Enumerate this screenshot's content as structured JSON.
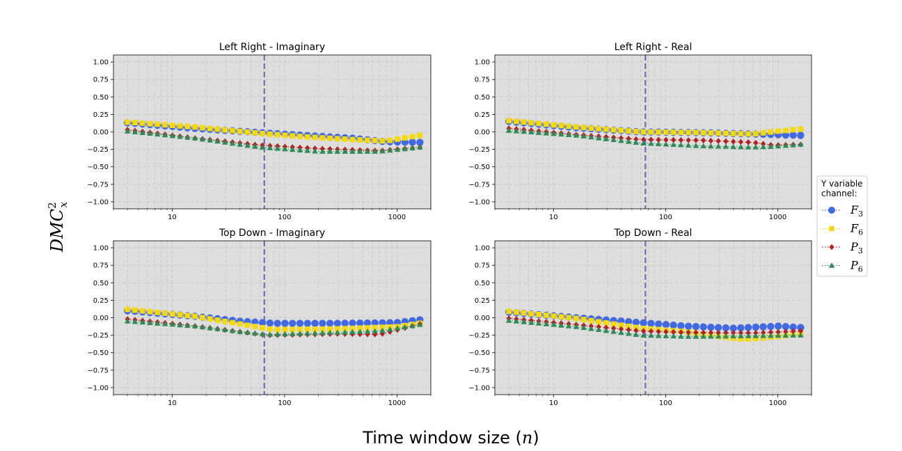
{
  "figure": {
    "xlabel": "Time window size (n)",
    "ylabel": "DMC²ₓ"
  },
  "legend": {
    "title_lines": [
      "Y variable",
      "channel:"
    ],
    "entries": [
      {
        "label": "F3",
        "base": "F",
        "sub": "3",
        "color": "#4169E1",
        "marker": "circle"
      },
      {
        "label": "F6",
        "base": "F",
        "sub": "6",
        "color": "#F5D90A",
        "marker": "square"
      },
      {
        "label": "P3",
        "base": "P",
        "sub": "3",
        "color": "#B22222",
        "marker": "diamond"
      },
      {
        "label": "P6",
        "base": "P",
        "sub": "6",
        "color": "#2E8B57",
        "marker": "triangle"
      }
    ]
  },
  "chart_data": [
    {
      "type": "scatter",
      "title": "Left Right - Imaginary",
      "xscale": "log",
      "xlim": [
        3,
        2000
      ],
      "ylim": [
        -1.1,
        1.1
      ],
      "xticks": [
        "10",
        "100",
        "1000"
      ],
      "yticks": [
        "1.00",
        "0.75",
        "0.50",
        "0.25",
        "0.00",
        "−0.25",
        "−0.50",
        "−0.75",
        "−1.00"
      ],
      "vline_x": 66,
      "grid": true,
      "series": [
        {
          "name": "F3",
          "keys": [
            [
              4,
              0.13
            ],
            [
              16,
              0.05
            ],
            [
              60,
              -0.01
            ],
            [
              150,
              -0.05
            ],
            [
              400,
              -0.09
            ],
            [
              800,
              -0.14
            ],
            [
              1600,
              -0.15
            ]
          ]
        },
        {
          "name": "F6",
          "keys": [
            [
              4,
              0.14
            ],
            [
              16,
              0.07
            ],
            [
              60,
              -0.02
            ],
            [
              150,
              -0.07
            ],
            [
              400,
              -0.11
            ],
            [
              800,
              -0.13
            ],
            [
              1600,
              -0.05
            ]
          ]
        },
        {
          "name": "P3",
          "keys": [
            [
              4,
              0.03
            ],
            [
              16,
              -0.09
            ],
            [
              60,
              -0.19
            ],
            [
              200,
              -0.24
            ],
            [
              700,
              -0.27
            ],
            [
              1600,
              -0.22
            ]
          ]
        },
        {
          "name": "P6",
          "keys": [
            [
              4,
              0.01
            ],
            [
              16,
              -0.09
            ],
            [
              60,
              -0.22
            ],
            [
              200,
              -0.28
            ],
            [
              700,
              -0.28
            ],
            [
              1600,
              -0.22
            ]
          ]
        }
      ]
    },
    {
      "type": "scatter",
      "title": "Left Right - Real",
      "xscale": "log",
      "xlim": [
        3,
        2000
      ],
      "ylim": [
        -1.1,
        1.1
      ],
      "xticks": [
        "10",
        "100",
        "1000"
      ],
      "yticks": [
        "1.00",
        "0.75",
        "0.50",
        "0.25",
        "0.00",
        "−0.25",
        "−0.50",
        "−0.75",
        "−1.00"
      ],
      "vline_x": 66,
      "grid": true,
      "series": [
        {
          "name": "F3",
          "keys": [
            [
              4,
              0.15
            ],
            [
              16,
              0.06
            ],
            [
              60,
              0.0
            ],
            [
              200,
              -0.01
            ],
            [
              600,
              -0.03
            ],
            [
              1600,
              -0.05
            ]
          ]
        },
        {
          "name": "F6",
          "keys": [
            [
              4,
              0.16
            ],
            [
              16,
              0.07
            ],
            [
              60,
              0.0
            ],
            [
              200,
              -0.01
            ],
            [
              600,
              -0.03
            ],
            [
              1000,
              0.01
            ],
            [
              1600,
              0.04
            ]
          ]
        },
        {
          "name": "P3",
          "keys": [
            [
              4,
              0.05
            ],
            [
              16,
              -0.04
            ],
            [
              60,
              -0.11
            ],
            [
              200,
              -0.12
            ],
            [
              600,
              -0.15
            ],
            [
              900,
              -0.19
            ],
            [
              1600,
              -0.18
            ]
          ]
        },
        {
          "name": "P6",
          "keys": [
            [
              4,
              0.02
            ],
            [
              16,
              -0.05
            ],
            [
              60,
              -0.16
            ],
            [
              200,
              -0.2
            ],
            [
              600,
              -0.22
            ],
            [
              900,
              -0.21
            ],
            [
              1600,
              -0.18
            ]
          ]
        }
      ]
    },
    {
      "type": "scatter",
      "title": "Top Down - Imaginary",
      "xscale": "log",
      "xlim": [
        3,
        2000
      ],
      "ylim": [
        -1.1,
        1.1
      ],
      "xticks": [
        "10",
        "100",
        "1000"
      ],
      "yticks": [
        "1.00",
        "0.75",
        "0.50",
        "0.25",
        "0.00",
        "−0.25",
        "−0.50",
        "−0.75",
        "−1.00"
      ],
      "vline_x": 66,
      "grid": true,
      "series": [
        {
          "name": "F3",
          "keys": [
            [
              4,
              0.1
            ],
            [
              16,
              0.02
            ],
            [
              40,
              -0.05
            ],
            [
              80,
              -0.08
            ],
            [
              300,
              -0.08
            ],
            [
              1000,
              -0.07
            ],
            [
              1600,
              -0.03
            ]
          ]
        },
        {
          "name": "F6",
          "keys": [
            [
              4,
              0.12
            ],
            [
              16,
              0.02
            ],
            [
              40,
              -0.09
            ],
            [
              80,
              -0.17
            ],
            [
              300,
              -0.16
            ],
            [
              1000,
              -0.13
            ],
            [
              1600,
              -0.08
            ]
          ]
        },
        {
          "name": "P3",
          "keys": [
            [
              4,
              -0.02
            ],
            [
              16,
              -0.12
            ],
            [
              40,
              -0.2
            ],
            [
              70,
              -0.25
            ],
            [
              300,
              -0.23
            ],
            [
              700,
              -0.24
            ],
            [
              1600,
              -0.09
            ]
          ]
        },
        {
          "name": "P6",
          "keys": [
            [
              4,
              -0.05
            ],
            [
              16,
              -0.12
            ],
            [
              40,
              -0.2
            ],
            [
              70,
              -0.24
            ],
            [
              300,
              -0.21
            ],
            [
              700,
              -0.19
            ],
            [
              1600,
              -0.1
            ]
          ]
        }
      ]
    },
    {
      "type": "scatter",
      "title": "Top Down - Real",
      "xscale": "log",
      "xlim": [
        3,
        2000
      ],
      "ylim": [
        -1.1,
        1.1
      ],
      "xticks": [
        "10",
        "100",
        "1000"
      ],
      "yticks": [
        "1.00",
        "0.75",
        "0.50",
        "0.25",
        "0.00",
        "−0.25",
        "−0.50",
        "−0.75",
        "−1.00"
      ],
      "vline_x": 66,
      "grid": true,
      "series": [
        {
          "name": "F3",
          "keys": [
            [
              4,
              0.08
            ],
            [
              16,
              0.0
            ],
            [
              60,
              -0.07
            ],
            [
              150,
              -0.12
            ],
            [
              400,
              -0.15
            ],
            [
              1000,
              -0.12
            ],
            [
              1600,
              -0.14
            ]
          ]
        },
        {
          "name": "F6",
          "keys": [
            [
              4,
              0.09
            ],
            [
              16,
              -0.01
            ],
            [
              60,
              -0.15
            ],
            [
              150,
              -0.2
            ],
            [
              300,
              -0.27
            ],
            [
              500,
              -0.31
            ],
            [
              1000,
              -0.27
            ],
            [
              1600,
              -0.23
            ]
          ]
        },
        {
          "name": "P3",
          "keys": [
            [
              4,
              -0.01
            ],
            [
              16,
              -0.1
            ],
            [
              60,
              -0.19
            ],
            [
              150,
              -0.21
            ],
            [
              600,
              -0.22
            ],
            [
              1600,
              -0.19
            ]
          ]
        },
        {
          "name": "P6",
          "keys": [
            [
              4,
              -0.04
            ],
            [
              16,
              -0.13
            ],
            [
              60,
              -0.25
            ],
            [
              150,
              -0.27
            ],
            [
              600,
              -0.26
            ],
            [
              1600,
              -0.25
            ]
          ]
        }
      ]
    }
  ]
}
